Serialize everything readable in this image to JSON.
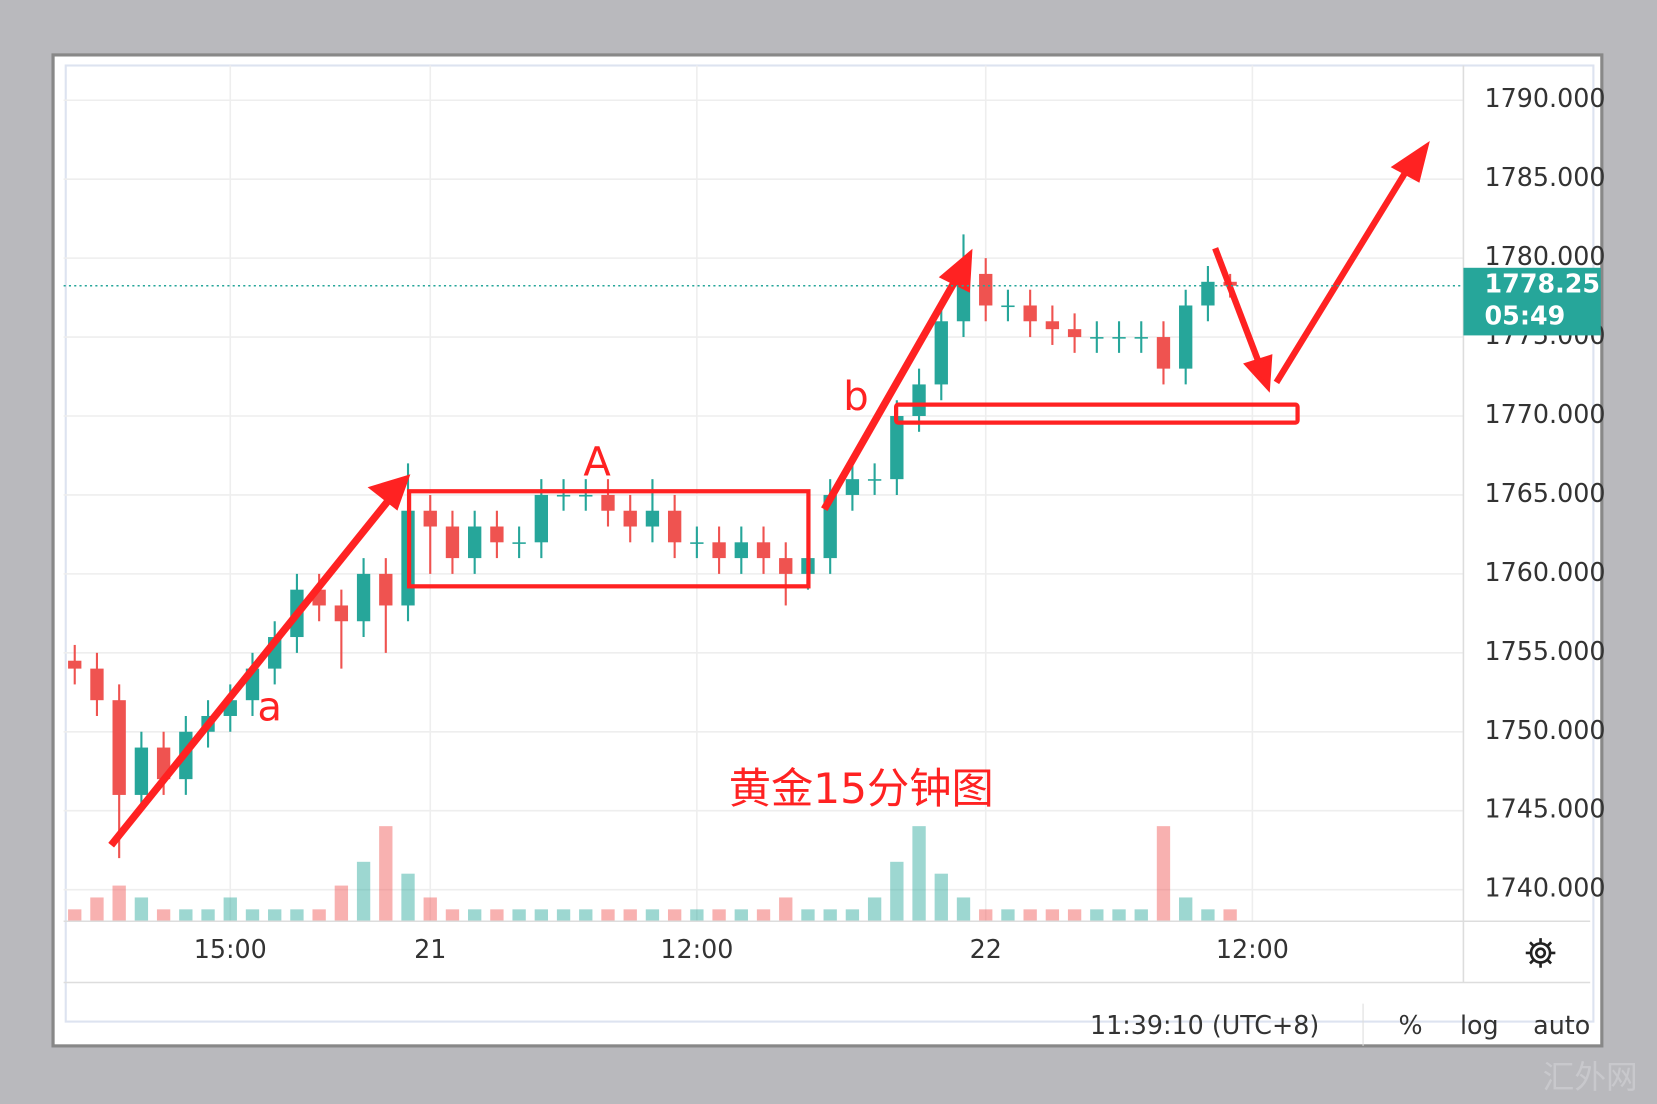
{
  "chart_data": {
    "type": "candlestick",
    "title": "黄金15分钟图",
    "annotations": [
      "a",
      "A",
      "b"
    ],
    "watermark": "汇外网",
    "categories": [
      null,
      null,
      null,
      null,
      null,
      null,
      null,
      "15:00",
      null,
      null,
      null,
      null,
      null,
      null,
      null,
      null,
      "21",
      null,
      null,
      null,
      null,
      null,
      null,
      null,
      null,
      null,
      null,
      null,
      "12:00",
      null,
      null,
      null,
      null,
      null,
      null,
      null,
      null,
      null,
      null,
      null,
      null,
      "22",
      null,
      null,
      null,
      null,
      null,
      null,
      null,
      null,
      null,
      null,
      null,
      "12:00",
      null,
      null,
      null,
      null,
      null,
      null,
      null,
      null,
      null
    ],
    "open": [
      1754.5,
      1754,
      1752,
      1746,
      1749,
      1747,
      1750,
      1751,
      1752,
      1754,
      1756,
      1759,
      1758,
      1757,
      1760,
      1758,
      1764,
      1763,
      1761,
      1763,
      1762,
      1762,
      1765,
      1765,
      1765,
      1764,
      1763,
      1764,
      1762,
      1762,
      1761,
      1762,
      1761,
      1760,
      1761,
      1765,
      1766,
      1766,
      1770,
      1772,
      1776,
      1779,
      1777,
      1777,
      1776,
      1775.5,
      1775,
      1775,
      1775,
      1775,
      1773,
      1777,
      1778.5,
      null,
      null,
      null,
      null,
      null,
      null,
      null,
      null,
      null,
      null
    ],
    "high": [
      1755.5,
      1755,
      1753,
      1750,
      1750,
      1751,
      1752,
      1753,
      1755,
      1757,
      1760,
      1760,
      1759,
      1761,
      1761,
      1767,
      1765,
      1764,
      1764,
      1764,
      1763,
      1766,
      1766,
      1766,
      1766,
      1765,
      1766,
      1765,
      1763,
      1763,
      1763,
      1763,
      1762,
      1762,
      1766,
      1767,
      1767,
      1771,
      1773,
      1777,
      1781.5,
      1780,
      1778,
      1778,
      1777,
      1776.5,
      1776,
      1776,
      1776,
      1776,
      1778,
      1779.5,
      1779,
      null,
      null,
      null,
      null,
      null,
      null,
      null,
      null,
      null,
      null
    ],
    "low": [
      1753,
      1751,
      1742,
      1745,
      1746,
      1746,
      1749,
      1750,
      1751,
      1753,
      1755,
      1757,
      1754,
      1756,
      1755,
      1757,
      1760,
      1760,
      1760,
      1761,
      1761,
      1761,
      1764,
      1764,
      1763,
      1762,
      1762,
      1761,
      1761,
      1760,
      1760,
      1760,
      1758,
      1759,
      1760,
      1764,
      1765,
      1765,
      1769,
      1771,
      1775,
      1776,
      1776,
      1775,
      1774.5,
      1774,
      1774,
      1774,
      1774,
      1772,
      1772,
      1776,
      1777.5,
      null,
      null,
      null,
      null,
      null,
      null,
      null,
      null,
      null,
      null
    ],
    "close": [
      1754,
      1752,
      1746,
      1749,
      1747,
      1750,
      1751,
      1752,
      1754,
      1756,
      1759,
      1758,
      1757,
      1760,
      1758,
      1764,
      1763,
      1761,
      1763,
      1762,
      1762,
      1765,
      1765,
      1765,
      1764,
      1763,
      1764,
      1762,
      1762,
      1761,
      1762,
      1761,
      1760,
      1761,
      1765,
      1766,
      1766,
      1770,
      1772,
      1776,
      1779,
      1777,
      1777,
      1776,
      1775.5,
      1775,
      1775,
      1775,
      1775,
      1773,
      1777,
      1778.5,
      1778.25,
      null,
      null,
      null,
      null,
      null,
      null,
      null,
      null,
      null,
      null
    ],
    "volume": [
      1,
      2,
      3,
      2,
      1,
      1,
      1,
      2,
      1,
      1,
      1,
      1,
      3,
      5,
      8,
      4,
      2,
      1,
      1,
      1,
      1,
      1,
      1,
      1,
      1,
      1,
      1,
      1,
      1,
      1,
      1,
      1,
      2,
      1,
      1,
      1,
      2,
      5,
      8,
      4,
      2,
      1,
      1,
      1,
      1,
      1,
      1,
      1,
      1,
      8,
      2,
      1,
      1,
      null,
      null,
      null,
      null,
      null,
      null,
      null,
      null,
      null,
      null
    ],
    "up_color": "#26a69a",
    "down_color": "#ef5350",
    "ylim": [
      1738,
      1792.2
    ],
    "yticks": [
      {
        "value": 1740,
        "label": "1740.000"
      },
      {
        "value": 1745,
        "label": "1745.000"
      },
      {
        "value": 1750,
        "label": "1750.000"
      },
      {
        "value": 1755,
        "label": "1755.000"
      },
      {
        "value": 1760,
        "label": "1760.000"
      },
      {
        "value": 1765,
        "label": "1765.000"
      },
      {
        "value": 1770,
        "label": "1770.000"
      },
      {
        "value": 1775,
        "label": "1775.000"
      },
      {
        "value": 1780,
        "label": "1780.000"
      },
      {
        "value": 1785,
        "label": "1785.000"
      },
      {
        "value": 1790,
        "label": "1790.000"
      }
    ],
    "grid": true,
    "last_price": 1778.25,
    "countdown": "05:49",
    "footer": {
      "time": "11:39:10 (UTC+8)",
      "percent": "%",
      "log": "log",
      "auto": "auto"
    }
  }
}
